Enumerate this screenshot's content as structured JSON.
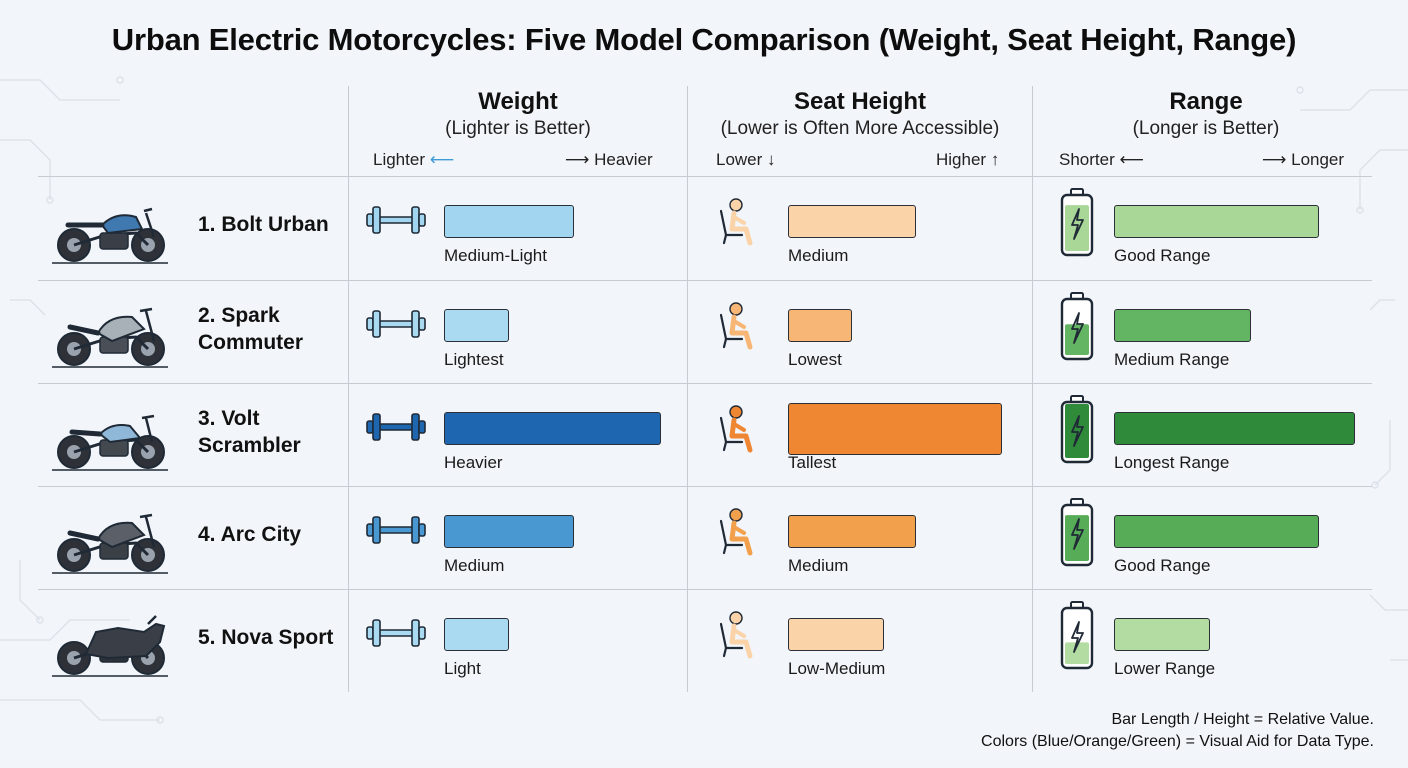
{
  "title": "Urban Electric Motorcycles: Five Model Comparison (Weight, Seat Height, Range)",
  "columns": [
    {
      "key": "weight",
      "title": "Weight",
      "subtitle": "(Lighter is Better)",
      "low_label": "Lighter",
      "high_label": "Heavier",
      "icon": "dumbbell-icon"
    },
    {
      "key": "seat",
      "title": "Seat Height",
      "subtitle": "(Lower is Often More Accessible)",
      "low_label": "Lower",
      "high_label": "Higher",
      "icon": "seated-person-icon"
    },
    {
      "key": "range",
      "title": "Range",
      "subtitle": "(Longer is Better)",
      "low_label": "Shorter",
      "high_label": "Longer",
      "icon": "battery-icon"
    }
  ],
  "legend": {
    "line1": "Bar Length / Height = Relative Value.",
    "line2": "Colors (Blue/Orange/Green) = Visual Aid for Data Type."
  },
  "chart_data": {
    "type": "bar",
    "title": "Urban Electric Motorcycles: Five Model Comparison (Weight, Seat Height, Range)",
    "categories": [
      "1. Bolt Urban",
      "2. Spark Commuter",
      "3. Volt Scrambler",
      "4. Arc City",
      "5. Nova Sport"
    ],
    "series": [
      {
        "name": "Weight",
        "values": [
          0.6,
          0.3,
          1.0,
          0.6,
          0.3
        ],
        "labels": [
          "Medium-Light",
          "Lightest",
          "Heavier",
          "Medium",
          "Light"
        ],
        "colors": [
          "#a2d6f0",
          "#a9daf2",
          "#1f66b0",
          "#4a98d2",
          "#a9daf2"
        ]
      },
      {
        "name": "Seat Height",
        "values": [
          0.6,
          0.3,
          1.0,
          0.6,
          0.45
        ],
        "labels": [
          "Medium",
          "Lowest",
          "Tallest",
          "Medium",
          "Low-Medium"
        ],
        "colors": [
          "#fbd3a8",
          "#f7b676",
          "#ef8632",
          "#f2a04c",
          "#fbd3a8"
        ]
      },
      {
        "name": "Range",
        "values": [
          0.85,
          0.57,
          1.0,
          0.85,
          0.4
        ],
        "labels": [
          "Good Range",
          "Medium Range",
          "Longest Range",
          "Good Range",
          "Lower Range"
        ],
        "colors": [
          "#a8d797",
          "#63b563",
          "#2f8a3a",
          "#57ad57",
          "#b2dca1"
        ]
      }
    ],
    "battery_fill": [
      0.85,
      0.57,
      1.0,
      0.85,
      0.4
    ]
  }
}
